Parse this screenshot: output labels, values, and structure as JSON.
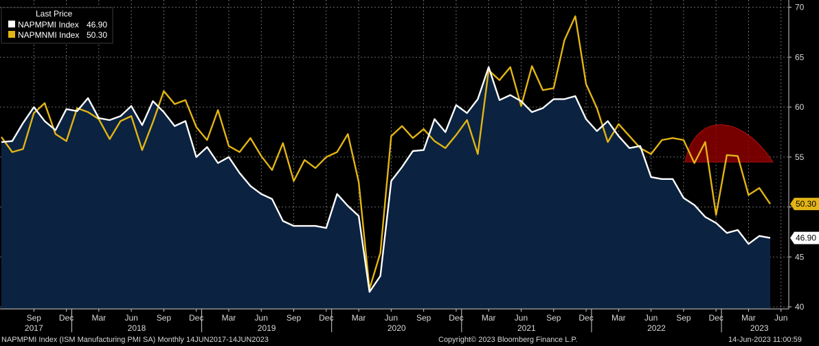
{
  "legend": {
    "title": "Last Price",
    "items": [
      {
        "name": "NAPMPMI Index",
        "value": "46.90",
        "color": "#ffffff"
      },
      {
        "name": "NAPMNMI Index",
        "value": "50.30",
        "color": "#e3b514"
      }
    ]
  },
  "footer": {
    "left": "NAPMPMI Index (ISM Manufacturing PMI SA)  Monthly 14JUN2017-14JUN2023",
    "center": "Copyright© 2023 Bloomberg Finance L.P.",
    "right": "14-Jun-2023 11:00:59"
  },
  "colors": {
    "background": "#000000",
    "area_fill": "#0b2340",
    "pmi_line": "#ffffff",
    "nmi_line": "#e3b514",
    "annotation_dome": "#8b0000",
    "grid": "#8a8a8a"
  },
  "chart_data": {
    "type": "line",
    "ylim": [
      40,
      70
    ],
    "y_ticks": [
      40,
      45,
      50,
      55,
      60,
      65,
      70
    ],
    "grid": true,
    "legend_position": "top-left",
    "x_tick_labels": [
      "Sep",
      "Dec",
      "Mar",
      "Jun",
      "Sep",
      "Dec",
      "Mar",
      "Jun",
      "Sep",
      "Dec",
      "Mar",
      "Jun",
      "Sep",
      "Dec",
      "Mar",
      "Jun",
      "Sep",
      "Dec",
      "Mar",
      "Jun",
      "Sep",
      "Dec",
      "Mar",
      "Jun"
    ],
    "year_labels": [
      "2017",
      "2018",
      "2019",
      "2020",
      "2021",
      "2022",
      "2023"
    ],
    "x": [
      "2017-06",
      "2017-07",
      "2017-08",
      "2017-09",
      "2017-10",
      "2017-11",
      "2017-12",
      "2018-01",
      "2018-02",
      "2018-03",
      "2018-04",
      "2018-05",
      "2018-06",
      "2018-07",
      "2018-08",
      "2018-09",
      "2018-10",
      "2018-11",
      "2018-12",
      "2019-01",
      "2019-02",
      "2019-03",
      "2019-04",
      "2019-05",
      "2019-06",
      "2019-07",
      "2019-08",
      "2019-09",
      "2019-10",
      "2019-11",
      "2019-12",
      "2020-01",
      "2020-02",
      "2020-03",
      "2020-04",
      "2020-05",
      "2020-06",
      "2020-07",
      "2020-08",
      "2020-09",
      "2020-10",
      "2020-11",
      "2020-12",
      "2021-01",
      "2021-02",
      "2021-03",
      "2021-04",
      "2021-05",
      "2021-06",
      "2021-07",
      "2021-08",
      "2021-09",
      "2021-10",
      "2021-11",
      "2021-12",
      "2022-01",
      "2022-02",
      "2022-03",
      "2022-04",
      "2022-05",
      "2022-06",
      "2022-07",
      "2022-08",
      "2022-09",
      "2022-10",
      "2022-11",
      "2022-12",
      "2023-01",
      "2023-02",
      "2023-03",
      "2023-04",
      "2023-05"
    ],
    "series": [
      {
        "name": "NAPMPMI Index",
        "last_value": "46.90",
        "values": [
          56.5,
          56.6,
          58.4,
          60.0,
          58.6,
          57.7,
          59.8,
          59.6,
          60.9,
          58.9,
          58.7,
          59.1,
          60.1,
          58.2,
          60.6,
          59.5,
          58.1,
          58.6,
          55.0,
          56.0,
          54.4,
          55.0,
          53.4,
          52.1,
          51.3,
          50.8,
          48.6,
          48.1,
          48.1,
          48.1,
          47.9,
          51.3,
          50.1,
          49.1,
          41.5,
          43.1,
          52.6,
          54.0,
          55.6,
          55.7,
          58.8,
          57.5,
          60.2,
          59.4,
          60.8,
          64.0,
          60.7,
          61.2,
          60.6,
          59.5,
          59.9,
          60.8,
          60.8,
          61.1,
          58.8,
          57.6,
          58.6,
          57.1,
          55.9,
          56.1,
          53.0,
          52.8,
          52.8,
          50.9,
          50.2,
          49.0,
          48.4,
          47.4,
          47.7,
          46.3,
          47.1,
          46.9
        ]
      },
      {
        "name": "NAPMNMI Index",
        "last_value": "50.30",
        "values": [
          57.0,
          55.5,
          55.8,
          59.4,
          60.4,
          57.3,
          56.6,
          59.9,
          59.5,
          58.8,
          56.8,
          58.6,
          59.1,
          55.7,
          58.5,
          61.6,
          60.3,
          60.7,
          58.0,
          56.7,
          59.7,
          56.1,
          55.5,
          56.9,
          55.1,
          53.7,
          56.4,
          52.6,
          54.7,
          53.9,
          55.0,
          55.5,
          57.3,
          52.5,
          41.8,
          45.4,
          57.1,
          58.1,
          56.9,
          57.8,
          56.6,
          55.9,
          57.2,
          58.7,
          55.3,
          63.7,
          62.7,
          64.0,
          60.1,
          64.1,
          61.7,
          61.9,
          66.7,
          69.1,
          62.3,
          59.9,
          56.5,
          58.3,
          57.1,
          55.9,
          55.3,
          56.7,
          56.9,
          56.7,
          54.4,
          56.5,
          49.2,
          55.2,
          55.1,
          51.2,
          51.9,
          50.3
        ]
      }
    ]
  }
}
